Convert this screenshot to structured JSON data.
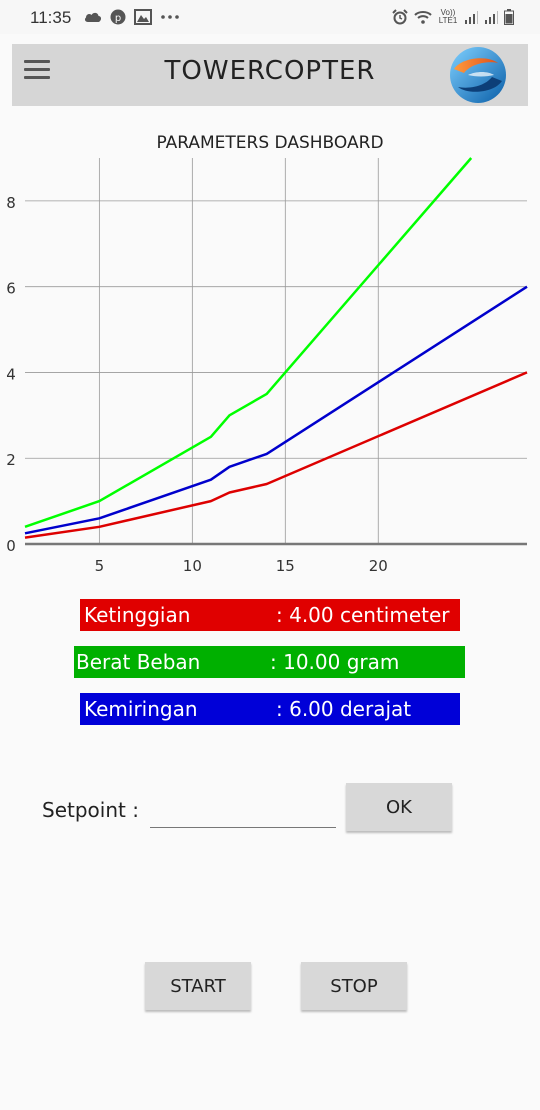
{
  "status_bar": {
    "time": "11:35",
    "left_icons": [
      "cloud-icon",
      "pinterest-icon",
      "gallery-icon",
      "more-dots-icon"
    ],
    "right_icons": [
      "alarm-icon",
      "wifi-icon",
      "volte-icon",
      "signal-icon",
      "signal-icon",
      "battery-icon"
    ],
    "volte_text": "Vo)) LTE1"
  },
  "app_bar": {
    "title": "TOWERCOPTER",
    "menu_icon": "hamburger-menu-icon",
    "logo_icon": "app-logo-icon"
  },
  "chart_data": {
    "type": "line",
    "title": "PARAMETERS DASHBOARD",
    "xlabel": "",
    "ylabel": "",
    "x_ticks": [
      5,
      10,
      15,
      20
    ],
    "y_ticks": [
      0,
      2,
      4,
      6,
      8
    ],
    "xlim": [
      1,
      28
    ],
    "ylim": [
      0,
      9
    ],
    "grid": true,
    "series": [
      {
        "color": "#00ff00",
        "x": [
          1,
          5,
          11,
          12,
          14,
          25
        ],
        "y": [
          0.4,
          1.0,
          2.5,
          3.0,
          3.5,
          9.0
        ]
      },
      {
        "color": "#0000cc",
        "x": [
          1,
          5,
          11,
          12,
          14,
          28
        ],
        "y": [
          0.25,
          0.6,
          1.5,
          1.8,
          2.1,
          6.0
        ]
      },
      {
        "color": "#dd0000",
        "x": [
          1,
          5,
          11,
          12,
          14,
          28
        ],
        "y": [
          0.15,
          0.4,
          1.0,
          1.2,
          1.4,
          4.0
        ]
      }
    ]
  },
  "readings": [
    {
      "label": "Ketinggian",
      "value": ": 4.00 centimeter",
      "color": "#e00000"
    },
    {
      "label": "Berat Beban",
      "value": ": 10.00 gram",
      "color": "#00b000"
    },
    {
      "label": "Kemiringan",
      "value": ": 6.00 derajat",
      "color": "#0000d8"
    }
  ],
  "setpoint": {
    "label": "Setpoint :",
    "value": "",
    "ok_label": "OK"
  },
  "controls": {
    "start_label": "START",
    "stop_label": "STOP"
  }
}
